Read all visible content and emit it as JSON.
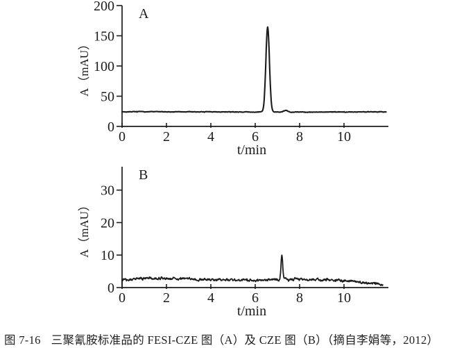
{
  "figure": {
    "background": "#ffffff",
    "line_color": "#1c1c1c",
    "text_color": "#1f1f1f"
  },
  "caption": {
    "label": "图 7-16",
    "text": "三聚氰胺标准品的 FESI-CZE 图（A）及 CZE 图（B）（摘自李娟等，2012）"
  },
  "chart_data": [
    {
      "id": "A",
      "type": "line",
      "panel_label": "A",
      "xlabel": "t/min",
      "ylabel": "A（mAU）",
      "xlim": [
        0,
        12
      ],
      "ylim": [
        0,
        200
      ],
      "xticks": [
        0,
        2,
        4,
        6,
        8,
        10
      ],
      "yticks": [
        0,
        50,
        100,
        150,
        200
      ],
      "grid": false,
      "legend": "none",
      "trace_end_min": 11.9,
      "baseline_mAU": 24,
      "noise_mAU": 0.55,
      "wave": {
        "amp": 0.25,
        "freq": 0.5,
        "phase": 1.0
      },
      "peaks": [
        {
          "t_min": 6.56,
          "apex_mAU": 165,
          "sigma_min": 0.08
        },
        {
          "t_min": 7.38,
          "apex_mAU": 26.5,
          "sigma_min": 0.09
        }
      ],
      "stroke_width": 2.1,
      "seed": 7
    },
    {
      "id": "B",
      "type": "line",
      "panel_label": "B",
      "xlabel": "t/min",
      "ylabel": "A（mAU）",
      "xlim": [
        0,
        12
      ],
      "ylim": [
        0,
        37.2
      ],
      "xticks": [
        0,
        2,
        4,
        6,
        8,
        10
      ],
      "yticks": [
        0,
        10,
        20,
        30
      ],
      "grid": false,
      "legend": "none",
      "trace_end_min": 11.75,
      "start_mAU": 1.2,
      "baseline_mAU": 2.55,
      "noise_mAU": 0.5,
      "wave": {
        "amp": 0.25,
        "freq": 0.8,
        "phase": 0.3
      },
      "drift": {
        "after_min": 7.9,
        "slope_mAU_per_min": 0.34
      },
      "peaks": [
        {
          "t_min": 7.2,
          "apex_mAU": 9.8,
          "sigma_min": 0.04
        }
      ],
      "stroke_width": 1.8,
      "seed": 13
    }
  ]
}
